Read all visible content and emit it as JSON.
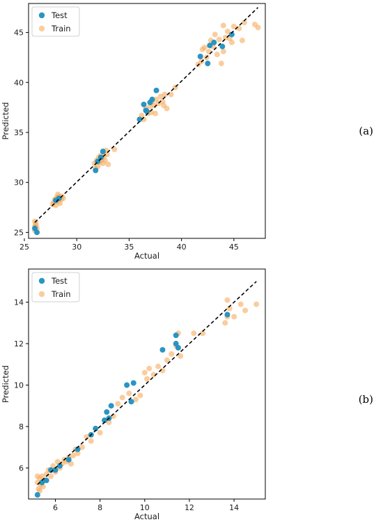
{
  "colors": {
    "test": "#1f8fc0",
    "train": "#f7ab5e",
    "diagonal": "#000000",
    "frame": "#000000"
  },
  "chart_data": [
    {
      "type": "scatter",
      "panel_label": "(a)",
      "xlabel": "Actual",
      "ylabel": "Predicted",
      "xlim": [
        25.4,
        48.0
      ],
      "ylim": [
        24.4,
        47.9
      ],
      "xticks": [
        25,
        30,
        35,
        40,
        45
      ],
      "yticks": [
        25,
        30,
        35,
        40,
        45
      ],
      "legend_position": "top-left",
      "diagonal": [
        [
          26.0,
          26.0
        ],
        [
          47.3,
          47.5
        ]
      ],
      "series": [
        {
          "name": "Train",
          "points": [
            [
              26.0,
              25.2
            ],
            [
              26.0,
              25.6
            ],
            [
              26.1,
              25.9
            ],
            [
              26.0,
              26.1
            ],
            [
              26.2,
              25.4
            ],
            [
              26.1,
              25.7
            ],
            [
              27.8,
              28.0
            ],
            [
              27.9,
              28.3
            ],
            [
              28.0,
              27.7
            ],
            [
              28.1,
              28.5
            ],
            [
              28.2,
              28.1
            ],
            [
              28.3,
              28.6
            ],
            [
              28.4,
              27.9
            ],
            [
              28.5,
              28.3
            ],
            [
              28.6,
              28.6
            ],
            [
              28.7,
              28.4
            ],
            [
              27.7,
              27.8
            ],
            [
              28.2,
              28.8
            ],
            [
              31.7,
              31.9
            ],
            [
              31.9,
              32.2
            ],
            [
              32.0,
              31.6
            ],
            [
              32.1,
              32.5
            ],
            [
              32.2,
              32.0
            ],
            [
              32.3,
              32.7
            ],
            [
              32.4,
              32.3
            ],
            [
              32.5,
              31.9
            ],
            [
              32.6,
              32.6
            ],
            [
              32.7,
              32.2
            ],
            [
              32.9,
              32.8
            ],
            [
              33.0,
              31.8
            ],
            [
              33.6,
              33.3
            ],
            [
              32.8,
              33.2
            ],
            [
              31.8,
              31.4
            ],
            [
              36.2,
              36.7
            ],
            [
              36.4,
              36.3
            ],
            [
              36.6,
              37.4
            ],
            [
              36.8,
              36.9
            ],
            [
              37.0,
              37.6
            ],
            [
              37.2,
              38.1
            ],
            [
              37.4,
              37.7
            ],
            [
              37.6,
              38.3
            ],
            [
              37.8,
              37.9
            ],
            [
              38.0,
              38.6
            ],
            [
              38.2,
              38.1
            ],
            [
              38.4,
              38.8
            ],
            [
              38.6,
              37.4
            ],
            [
              39.0,
              38.8
            ],
            [
              38.3,
              37.7
            ],
            [
              37.1,
              37.0
            ],
            [
              39.4,
              39.5
            ],
            [
              37.5,
              36.9
            ],
            [
              41.6,
              41.8
            ],
            [
              41.9,
              42.1
            ],
            [
              42.0,
              43.3
            ],
            [
              42.2,
              43.5
            ],
            [
              42.4,
              42.5
            ],
            [
              42.6,
              43.1
            ],
            [
              42.8,
              44.2
            ],
            [
              43.0,
              43.6
            ],
            [
              43.2,
              44.8
            ],
            [
              43.4,
              42.8
            ],
            [
              43.6,
              44.3
            ],
            [
              43.8,
              41.9
            ],
            [
              44.0,
              43.1
            ],
            [
              44.2,
              44.5
            ],
            [
              44.4,
              45.1
            ],
            [
              44.6,
              44.4
            ],
            [
              44.8,
              44.0
            ],
            [
              45.0,
              45.6
            ],
            [
              45.5,
              45.4
            ],
            [
              45.8,
              44.2
            ],
            [
              46.0,
              46.0
            ],
            [
              47.0,
              45.8
            ],
            [
              47.3,
              45.5
            ],
            [
              44.0,
              45.7
            ]
          ]
        },
        {
          "name": "Test",
          "points": [
            [
              26.2,
              25.0
            ],
            [
              26.0,
              25.4
            ],
            [
              28.0,
              28.2
            ],
            [
              28.3,
              28.4
            ],
            [
              31.8,
              31.2
            ],
            [
              32.0,
              32.1
            ],
            [
              32.3,
              32.5
            ],
            [
              32.5,
              33.1
            ],
            [
              36.0,
              36.3
            ],
            [
              36.4,
              37.8
            ],
            [
              36.6,
              37.2
            ],
            [
              37.0,
              38.0
            ],
            [
              37.2,
              38.3
            ],
            [
              37.6,
              39.2
            ],
            [
              36.7,
              37.1
            ],
            [
              41.8,
              42.6
            ],
            [
              42.5,
              41.9
            ],
            [
              42.7,
              43.7
            ],
            [
              43.1,
              44.0
            ],
            [
              43.9,
              43.6
            ],
            [
              44.8,
              44.8
            ]
          ]
        }
      ]
    },
    {
      "type": "scatter",
      "panel_label": "(b)",
      "xlabel": "Actual",
      "ylabel": "Predicted",
      "xlim": [
        4.8,
        15.4
      ],
      "ylim": [
        4.5,
        15.6
      ],
      "xticks": [
        6,
        8,
        10,
        12,
        14
      ],
      "yticks": [
        6,
        8,
        10,
        12,
        14
      ],
      "legend_position": "top-left",
      "diagonal": [
        [
          5.2,
          5.2
        ],
        [
          15.0,
          15.0
        ]
      ],
      "series": [
        {
          "name": "Train",
          "points": [
            [
              5.2,
              5.3
            ],
            [
              5.25,
              5.0
            ],
            [
              5.3,
              5.5
            ],
            [
              5.35,
              5.2
            ],
            [
              5.4,
              5.6
            ],
            [
              5.45,
              5.1
            ],
            [
              5.5,
              5.4
            ],
            [
              5.2,
              5.6
            ],
            [
              5.3,
              4.9
            ],
            [
              5.6,
              5.7
            ],
            [
              5.7,
              5.9
            ],
            [
              5.8,
              5.6
            ],
            [
              5.9,
              6.1
            ],
            [
              6.0,
              5.8
            ],
            [
              6.1,
              6.3
            ],
            [
              6.2,
              6.0
            ],
            [
              6.3,
              6.2
            ],
            [
              6.4,
              6.4
            ],
            [
              6.5,
              6.3
            ],
            [
              6.6,
              6.5
            ],
            [
              6.7,
              6.2
            ],
            [
              6.8,
              6.6
            ],
            [
              6.9,
              6.9
            ],
            [
              7.0,
              6.7
            ],
            [
              7.2,
              7.0
            ],
            [
              7.4,
              7.5
            ],
            [
              7.6,
              7.3
            ],
            [
              7.8,
              7.9
            ],
            [
              8.0,
              7.7
            ],
            [
              8.2,
              8.3
            ],
            [
              8.4,
              8.2
            ],
            [
              8.6,
              8.5
            ],
            [
              8.8,
              9.1
            ],
            [
              9.0,
              9.4
            ],
            [
              9.3,
              9.6
            ],
            [
              9.6,
              9.3
            ],
            [
              9.8,
              9.5
            ],
            [
              10.0,
              10.6
            ],
            [
              10.1,
              10.3
            ],
            [
              10.2,
              10.8
            ],
            [
              10.4,
              10.5
            ],
            [
              10.6,
              10.9
            ],
            [
              10.8,
              10.7
            ],
            [
              11.0,
              11.2
            ],
            [
              11.2,
              11.5
            ],
            [
              11.4,
              11.9
            ],
            [
              11.5,
              12.5
            ],
            [
              11.6,
              11.4
            ],
            [
              12.2,
              12.5
            ],
            [
              12.6,
              12.5
            ],
            [
              13.6,
              13.0
            ],
            [
              13.7,
              13.3
            ],
            [
              13.8,
              13.7
            ],
            [
              13.7,
              14.1
            ],
            [
              14.0,
              13.3
            ],
            [
              14.3,
              13.9
            ],
            [
              14.5,
              13.6
            ],
            [
              15.0,
              13.9
            ]
          ]
        },
        {
          "name": "Test",
          "points": [
            [
              5.2,
              4.7
            ],
            [
              5.4,
              5.3
            ],
            [
              5.6,
              5.4
            ],
            [
              5.8,
              5.9
            ],
            [
              6.0,
              5.9
            ],
            [
              6.2,
              6.1
            ],
            [
              6.6,
              6.4
            ],
            [
              7.0,
              6.9
            ],
            [
              7.6,
              7.6
            ],
            [
              7.8,
              7.9
            ],
            [
              8.2,
              8.3
            ],
            [
              8.3,
              8.7
            ],
            [
              8.5,
              9.0
            ],
            [
              8.4,
              8.4
            ],
            [
              9.2,
              10.0
            ],
            [
              9.4,
              9.2
            ],
            [
              9.5,
              10.1
            ],
            [
              10.8,
              11.7
            ],
            [
              11.4,
              12.0
            ],
            [
              11.4,
              12.4
            ],
            [
              11.5,
              11.8
            ],
            [
              13.7,
              13.4
            ]
          ]
        }
      ]
    }
  ]
}
